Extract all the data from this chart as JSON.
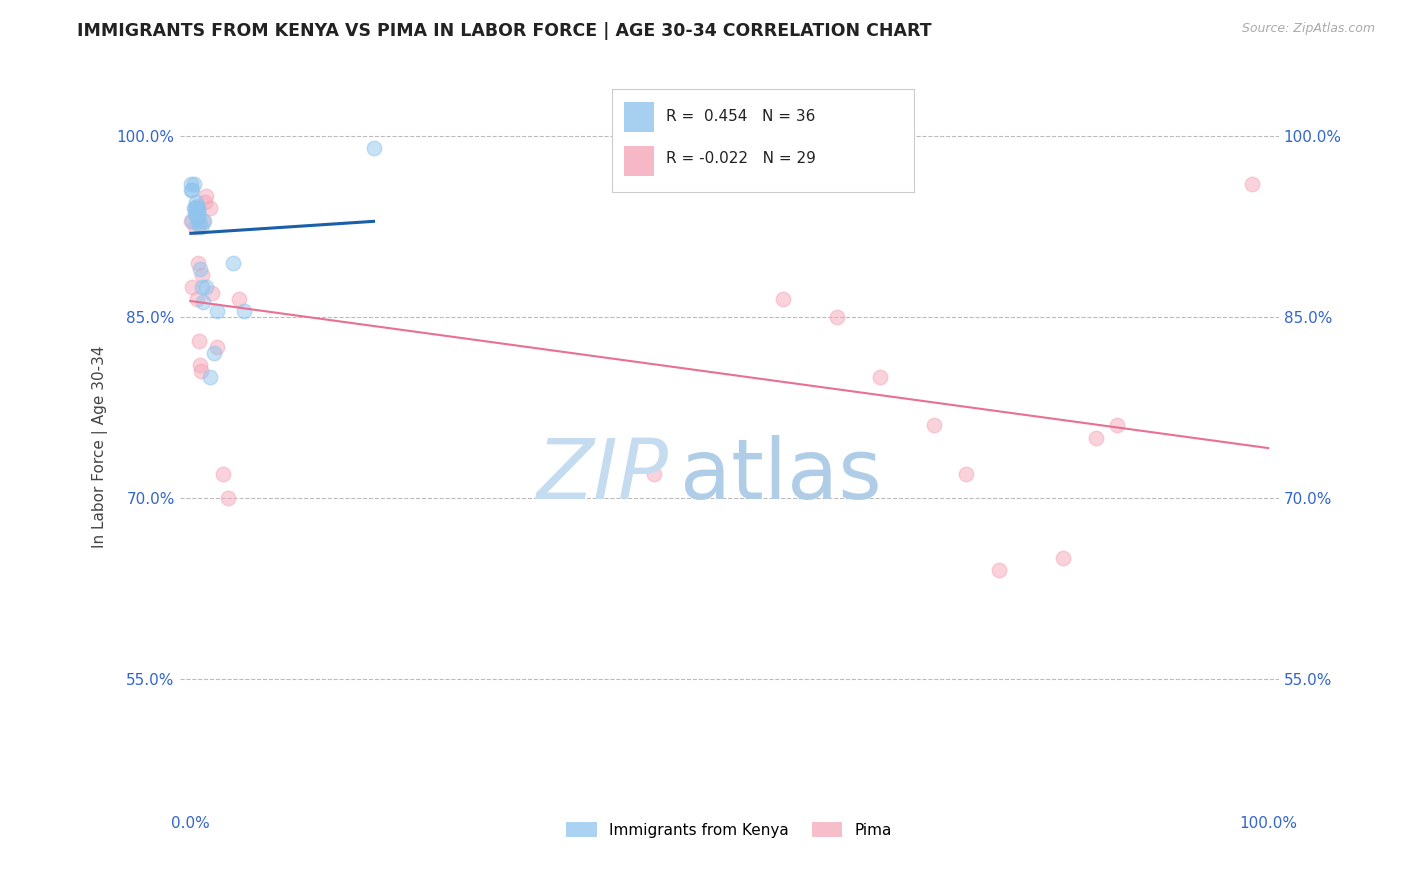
{
  "title": "IMMIGRANTS FROM KENYA VS PIMA IN LABOR FORCE | AGE 30-34 CORRELATION CHART",
  "source": "Source: ZipAtlas.com",
  "ylabel": "In Labor Force | Age 30-34",
  "ytick_labels": [
    "55.0%",
    "70.0%",
    "85.0%",
    "100.0%"
  ],
  "ytick_values": [
    0.55,
    0.7,
    0.85,
    1.0
  ],
  "xtick_labels": [
    "0.0%",
    "100.0%"
  ],
  "xtick_values": [
    0.0,
    1.0
  ],
  "xlim": [
    -0.01,
    1.01
  ],
  "ylim": [
    0.44,
    1.045
  ],
  "legend_kenya_R": " 0.454",
  "legend_kenya_N": "36",
  "legend_pima_R": "-0.022",
  "legend_pima_N": "29",
  "kenya_color": "#90C4ED",
  "pima_color": "#F4A7B9",
  "kenya_line_color": "#1A5FA8",
  "pima_line_color": "#E87090",
  "background_color": "#FFFFFF",
  "grid_color": "#BBBBBB",
  "kenya_x": [
    0.0005,
    0.001,
    0.002,
    0.002,
    0.003,
    0.003,
    0.004,
    0.004,
    0.005,
    0.005,
    0.005,
    0.005,
    0.006,
    0.006,
    0.006,
    0.006,
    0.006,
    0.007,
    0.007,
    0.007,
    0.007,
    0.007,
    0.008,
    0.008,
    0.009,
    0.01,
    0.011,
    0.012,
    0.013,
    0.015,
    0.018,
    0.022,
    0.025,
    0.04,
    0.05,
    0.17
  ],
  "kenya_y": [
    0.96,
    0.955,
    0.955,
    0.93,
    0.94,
    0.96,
    0.94,
    0.935,
    0.935,
    0.94,
    0.945,
    0.935,
    0.932,
    0.935,
    0.94,
    0.938,
    0.942,
    0.932,
    0.936,
    0.938,
    0.94,
    0.935,
    0.93,
    0.926,
    0.89,
    0.925,
    0.875,
    0.862,
    0.93,
    0.875,
    0.8,
    0.82,
    0.855,
    0.895,
    0.855,
    0.99
  ],
  "pima_x": [
    0.001,
    0.002,
    0.004,
    0.006,
    0.007,
    0.008,
    0.009,
    0.01,
    0.011,
    0.012,
    0.014,
    0.015,
    0.018,
    0.02,
    0.025,
    0.03,
    0.035,
    0.045,
    0.43,
    0.55,
    0.6,
    0.64,
    0.69,
    0.72,
    0.75,
    0.81,
    0.84,
    0.86,
    0.985
  ],
  "pima_y": [
    0.93,
    0.875,
    0.925,
    0.865,
    0.895,
    0.83,
    0.81,
    0.805,
    0.885,
    0.93,
    0.945,
    0.95,
    0.94,
    0.87,
    0.825,
    0.72,
    0.7,
    0.865,
    0.72,
    0.865,
    0.85,
    0.8,
    0.76,
    0.72,
    0.64,
    0.65,
    0.75,
    0.76,
    0.96
  ],
  "title_fontsize": 12.5,
  "axis_label_fontsize": 11,
  "tick_fontsize": 11,
  "scatter_size": 110,
  "scatter_alpha": 0.5,
  "watermark_zip_color": "#C5DCF0",
  "watermark_atlas_color": "#B0CDE8"
}
